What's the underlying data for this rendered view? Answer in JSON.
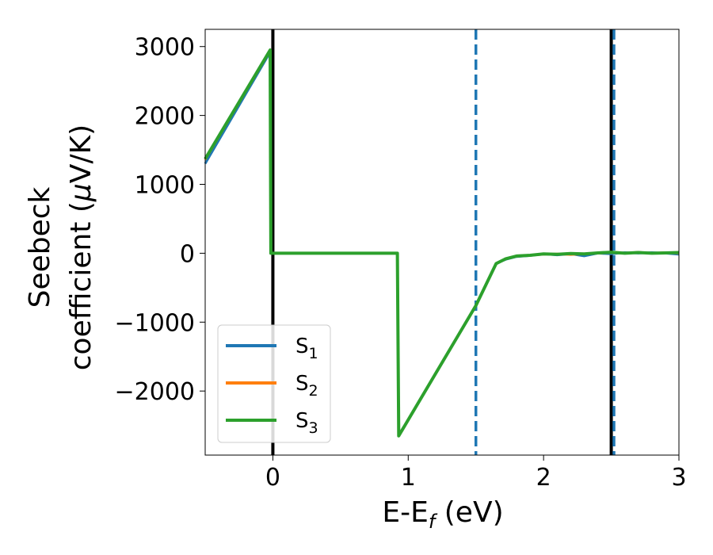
{
  "chart_data": {
    "type": "line",
    "title": "",
    "xlabel": "E-E",
    "xlabel_sub": "f",
    "xlabel_unit": " (eV)",
    "ylabel_line1": "Seebeck",
    "ylabel_line2": "coefficient  (",
    "ylabel_mu": "μ",
    "ylabel_unit": "V/K)",
    "xlim": [
      -0.5,
      3.0
    ],
    "ylim": [
      -2930,
      3250
    ],
    "xticks": [
      0,
      1,
      2,
      3
    ],
    "yticks": [
      -2000,
      -1000,
      0,
      1000,
      2000,
      3000
    ],
    "xtick_labels": [
      "0",
      "1",
      "2",
      "3"
    ],
    "ytick_labels": [
      "−2000",
      "−1000",
      "0",
      "1000",
      "2000",
      "3000"
    ],
    "grid": false,
    "legend_position": "lower-left",
    "series": [
      {
        "name": "S",
        "sub": "1",
        "color": "#1f77b4",
        "x": [
          -0.5,
          -0.02,
          -0.015,
          0.92,
          0.93,
          1.5,
          1.65,
          1.72,
          1.8,
          1.9,
          2.0,
          2.1,
          2.2,
          2.3,
          2.4,
          2.5,
          2.6,
          2.7,
          2.8,
          2.9,
          3.0
        ],
        "y": [
          1300,
          2920,
          0,
          0,
          -2650,
          -760,
          -150,
          -90,
          -50,
          -35,
          -10,
          -25,
          -10,
          -40,
          0,
          -10,
          10,
          0,
          10,
          0,
          -15
        ]
      },
      {
        "name": "S",
        "sub": "2",
        "color": "#ff7f0e",
        "x": [
          -0.5,
          -0.02,
          -0.015,
          0.92,
          0.93,
          1.5,
          1.65,
          1.72,
          1.8,
          1.9,
          2.0,
          2.1,
          2.2,
          2.3,
          2.4,
          2.5,
          2.6,
          2.7,
          2.8,
          2.9,
          3.0
        ],
        "y": [
          1360,
          2940,
          0,
          0,
          -2650,
          -760,
          -150,
          -80,
          -45,
          -30,
          -15,
          -10,
          -20,
          -10,
          0,
          10,
          0,
          15,
          0,
          10,
          0
        ]
      },
      {
        "name": "S",
        "sub": "3",
        "color": "#2ca02c",
        "x": [
          -0.5,
          -0.02,
          -0.015,
          0.92,
          0.93,
          1.5,
          1.65,
          1.72,
          1.8,
          1.9,
          2.0,
          2.1,
          2.2,
          2.3,
          2.4,
          2.5,
          2.6,
          2.7,
          2.8,
          2.9,
          3.0
        ],
        "y": [
          1370,
          2950,
          0,
          0,
          -2650,
          -760,
          -150,
          -80,
          -40,
          -30,
          -10,
          -15,
          -5,
          -10,
          5,
          15,
          0,
          10,
          0,
          5,
          10
        ]
      }
    ],
    "vlines": [
      {
        "x": 0.0,
        "style": "solid",
        "color": "#000000"
      },
      {
        "x": 1.5,
        "style": "dashed",
        "color": "#1f77b4"
      },
      {
        "x": 2.5,
        "style": "solid",
        "color": "#000000"
      },
      {
        "x": 2.52,
        "style": "dashed",
        "color": "#1f77b4"
      }
    ]
  }
}
